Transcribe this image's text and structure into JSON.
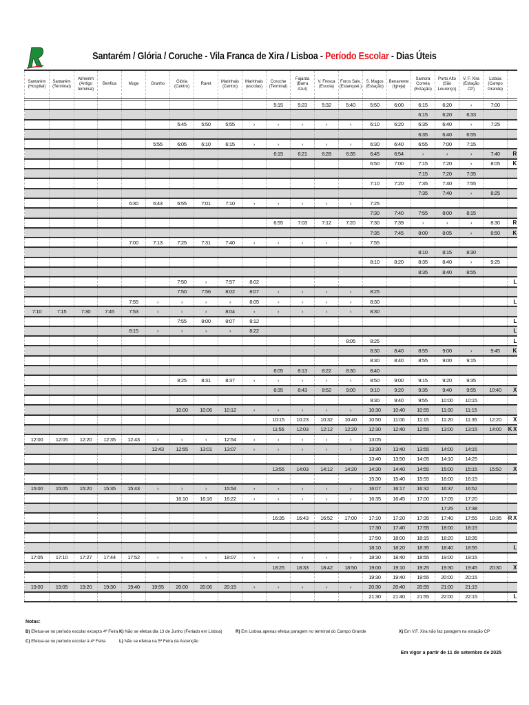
{
  "logo": {
    "letter": "R",
    "color": "#1f8a3a"
  },
  "title": {
    "part1": "Santarém / Glória / Coruche - Vila Franca de Xira / Lisboa - ",
    "highlight": "Período Escolar",
    "part2": " - Dias Úteis",
    "highlight_color": "#e3141b"
  },
  "columns": [
    "Santarém\n(Hospital)",
    "Santarém\n(Terminal)",
    "Almeirim\n(Antigo\nterminal)",
    "Benfica",
    "Muge",
    "Granho",
    "Glória\n(Centro)",
    "Raret",
    "Marinhais\n(Centro)",
    "Marinhais\n(escolas)",
    "Coruche\n(Terminal)",
    "Fajarda (Barra\nAzul)",
    "V. Fresca\n(Escola)",
    "Foros Salv.\n(Estanquei.)",
    "S. Magos\n(Estação)",
    "Benavente\n(Igreja)",
    "Samora\nCorreia\n(Estação)",
    "Porto Alto\n(São\nLourenço)",
    "V. F. Xira\n(Estação CP)",
    "Lisboa\n(Campo\nGrande)",
    ""
  ],
  "rows": [
    [
      "",
      "",
      "",
      "",
      "",
      "",
      "",
      "",
      "",
      "",
      "5:15",
      "5:23",
      "5:32",
      "5:40",
      "5:50",
      "6:00",
      "6:15",
      "6:20",
      "›",
      "7:00",
      ""
    ],
    [
      "",
      "",
      "",
      "",
      "",
      "",
      "",
      "",
      "",
      "",
      "",
      "",
      "",
      "",
      "",
      "",
      "6:15",
      "6:20",
      "6:33",
      "",
      ""
    ],
    [
      "",
      "",
      "",
      "",
      "",
      "",
      "5:45",
      "5:50",
      "5:55",
      "›",
      "›",
      "›",
      "›",
      "›",
      "6:10",
      "6:20",
      "6:35",
      "6:40",
      "›",
      "7:25",
      ""
    ],
    [
      "",
      "",
      "",
      "",
      "",
      "",
      "",
      "",
      "",
      "",
      "",
      "",
      "",
      "",
      "",
      "",
      "6:35",
      "6:40",
      "6:55",
      "",
      ""
    ],
    [
      "",
      "",
      "",
      "",
      "",
      "5:55",
      "6:05",
      "6:10",
      "6:15",
      "›",
      "›",
      "›",
      "›",
      "›",
      "6:30",
      "6:40",
      "6:55",
      "7:00",
      "7:15",
      "",
      ""
    ],
    [
      "",
      "",
      "",
      "",
      "",
      "",
      "",
      "",
      "",
      "",
      "6:15",
      "6:21",
      "6:28",
      "6:35",
      "6:45",
      "6:54",
      "›",
      "›",
      "›",
      "7:40",
      "R"
    ],
    [
      "",
      "",
      "",
      "",
      "",
      "",
      "",
      "",
      "",
      "",
      "",
      "",
      "",
      "",
      "6:50",
      "7:00",
      "7:15",
      "7:20",
      "›",
      "8:05",
      "K"
    ],
    [
      "",
      "",
      "",
      "",
      "",
      "",
      "",
      "",
      "",
      "",
      "",
      "",
      "",
      "",
      "",
      "",
      "7:15",
      "7:20",
      "7:35",
      "",
      ""
    ],
    [
      "",
      "",
      "",
      "",
      "",
      "",
      "",
      "",
      "",
      "",
      "",
      "",
      "",
      "",
      "7:10",
      "7:20",
      "7:35",
      "7:40",
      "7:55",
      "",
      ""
    ],
    [
      "",
      "",
      "",
      "",
      "",
      "",
      "",
      "",
      "",
      "",
      "",
      "",
      "",
      "",
      "",
      "",
      "7:35",
      "7:40",
      "›",
      "8:25",
      ""
    ],
    [
      "",
      "",
      "",
      "",
      "6:30",
      "6:43",
      "6:55",
      "7:01",
      "7:10",
      "›",
      "›",
      "›",
      "›",
      "›",
      "7:25",
      "",
      "",
      "",
      "",
      "",
      ""
    ],
    [
      "",
      "",
      "",
      "",
      "",
      "",
      "",
      "",
      "",
      "",
      "",
      "",
      "",
      "",
      "7:30",
      "7:40",
      "7:55",
      "8:00",
      "8:15",
      "",
      ""
    ],
    [
      "",
      "",
      "",
      "",
      "",
      "",
      "",
      "",
      "",
      "",
      "6:55",
      "7:03",
      "7:12",
      "7:20",
      "7:30",
      "7:39",
      "›",
      "›",
      "›",
      "8:30",
      "R"
    ],
    [
      "",
      "",
      "",
      "",
      "",
      "",
      "",
      "",
      "",
      "",
      "",
      "",
      "",
      "",
      "7:35",
      "7:45",
      "8:00",
      "8:05",
      "›",
      "8:50",
      "K"
    ],
    [
      "",
      "",
      "",
      "",
      "7:00",
      "7:13",
      "7:25",
      "7:31",
      "7:40",
      "›",
      "›",
      "›",
      "›",
      "›",
      "7:55",
      "",
      "",
      "",
      "",
      "",
      ""
    ],
    [
      "",
      "",
      "",
      "",
      "",
      "",
      "",
      "",
      "",
      "",
      "",
      "",
      "",
      "",
      "",
      "",
      "8:10",
      "8:15",
      "8:30",
      "",
      ""
    ],
    [
      "",
      "",
      "",
      "",
      "",
      "",
      "",
      "",
      "",
      "",
      "",
      "",
      "",
      "",
      "8:10",
      "8:20",
      "8:35",
      "8:40",
      "›",
      "9:25",
      ""
    ],
    [
      "",
      "",
      "",
      "",
      "",
      "",
      "",
      "",
      "",
      "",
      "",
      "",
      "",
      "",
      "",
      "",
      "8:35",
      "8:40",
      "8:55",
      "",
      ""
    ],
    [
      "",
      "",
      "",
      "",
      "",
      "",
      "7:50",
      "›",
      "7:57",
      "8:02",
      "",
      "",
      "",
      "",
      "",
      "",
      "",
      "",
      "",
      "",
      "L"
    ],
    [
      "",
      "",
      "",
      "",
      "",
      "",
      "7:50",
      "7:56",
      "8:02",
      "8:07",
      "›",
      "›",
      "›",
      "›",
      "8:25",
      "",
      "",
      "",
      "",
      "",
      ""
    ],
    [
      "",
      "",
      "",
      "",
      "7:55",
      "›",
      "›",
      "›",
      "›",
      "8:05",
      "›",
      "›",
      "›",
      "›",
      "8:30",
      "",
      "",
      "",
      "",
      "",
      "L"
    ],
    [
      "7:10",
      "7:15",
      "7:30",
      "7:45",
      "7:53",
      "›",
      "›",
      "›",
      "8:04",
      "›",
      "›",
      "›",
      "›",
      "›",
      "8:30",
      "",
      "",
      "",
      "",
      "",
      ""
    ],
    [
      "",
      "",
      "",
      "",
      "",
      "",
      "7:55",
      "8:00",
      "8:07",
      "8:12",
      "",
      "",
      "",
      "",
      "",
      "",
      "",
      "",
      "",
      "",
      "L"
    ],
    [
      "",
      "",
      "",
      "",
      "8:15",
      "›",
      "›",
      "›",
      "›",
      "8:22",
      "",
      "",
      "",
      "",
      "",
      "",
      "",
      "",
      "",
      "",
      "L"
    ],
    [
      "",
      "",
      "",
      "",
      "",
      "",
      "",
      "",
      "",
      "",
      "",
      "",
      "",
      "8:05",
      "8:25",
      "",
      "",
      "",
      "",
      "",
      "L"
    ],
    [
      "",
      "",
      "",
      "",
      "",
      "",
      "",
      "",
      "",
      "",
      "",
      "",
      "",
      "",
      "8:30",
      "8:40",
      "8:55",
      "9:00",
      "›",
      "9:45",
      "K"
    ],
    [
      "",
      "",
      "",
      "",
      "",
      "",
      "",
      "",
      "",
      "",
      "",
      "",
      "",
      "",
      "8:30",
      "8:40",
      "8:55",
      "9:00",
      "9:15",
      "",
      ""
    ],
    [
      "",
      "",
      "",
      "",
      "",
      "",
      "",
      "",
      "",
      "",
      "8:05",
      "8:13",
      "8:22",
      "8:30",
      "8:40",
      "",
      "",
      "",
      "",
      "",
      ""
    ],
    [
      "",
      "",
      "",
      "",
      "",
      "",
      "8:25",
      "8:31",
      "8:37",
      "›",
      "›",
      "›",
      "›",
      "›",
      "8:50",
      "9:00",
      "9:15",
      "9:20",
      "9:35",
      "",
      ""
    ],
    [
      "",
      "",
      "",
      "",
      "",
      "",
      "",
      "",
      "",
      "",
      "8:35",
      "8:43",
      "8:52",
      "9:00",
      "9:10",
      "9:20",
      "9:35",
      "9:40",
      "9:55",
      "10:40",
      "X"
    ],
    [
      "",
      "",
      "",
      "",
      "",
      "",
      "",
      "",
      "",
      "",
      "",
      "",
      "",
      "",
      "9:30",
      "9:40",
      "9:55",
      "10:00",
      "10:15",
      "",
      ""
    ],
    [
      "",
      "",
      "",
      "",
      "",
      "",
      "10:00",
      "10:06",
      "10:12",
      "›",
      "›",
      "›",
      "›",
      "›",
      "10:30",
      "10:40",
      "10:55",
      "11:00",
      "11:15",
      "",
      ""
    ],
    [
      "",
      "",
      "",
      "",
      "",
      "",
      "",
      "",
      "",
      "",
      "10:15",
      "10:23",
      "10:32",
      "10:40",
      "10:50",
      "11:00",
      "11:15",
      "11:20",
      "11:35",
      "12:20",
      "X"
    ],
    [
      "",
      "",
      "",
      "",
      "",
      "",
      "",
      "",
      "",
      "",
      "11:55",
      "12:03",
      "12:12",
      "12:20",
      "12:30",
      "12:40",
      "12:55",
      "13:00",
      "13:15",
      "14:00",
      "K X"
    ],
    [
      "12:00",
      "12:05",
      "12:20",
      "12:35",
      "12:43",
      "›",
      "›",
      "›",
      "12:54",
      "›",
      "›",
      "›",
      "›",
      "›",
      "13:05",
      "",
      "",
      "",
      "",
      "",
      ""
    ],
    [
      "",
      "",
      "",
      "",
      "",
      "12:43",
      "12:55",
      "13:01",
      "13:07",
      "›",
      "›",
      "›",
      "›",
      "›",
      "13:30",
      "13:40",
      "13:55",
      "14:00",
      "14:15",
      "",
      ""
    ],
    [
      "",
      "",
      "",
      "",
      "",
      "",
      "",
      "",
      "",
      "",
      "",
      "",
      "",
      "",
      "13:40",
      "13:50",
      "14:05",
      "14:10",
      "14:25",
      "",
      ""
    ],
    [
      "",
      "",
      "",
      "",
      "",
      "",
      "",
      "",
      "",
      "",
      "13:55",
      "14:03",
      "14:12",
      "14:20",
      "14:30",
      "14:40",
      "14:55",
      "15:00",
      "15:15",
      "15:50",
      "X"
    ],
    [
      "",
      "",
      "",
      "",
      "",
      "",
      "",
      "",
      "",
      "",
      "",
      "",
      "",
      "",
      "15:30",
      "15:40",
      "15:55",
      "16:00",
      "16:15",
      "",
      ""
    ],
    [
      "15:00",
      "15:05",
      "15:20",
      "15:35",
      "15:43",
      "›",
      "›",
      "›",
      "15:54",
      "›",
      "›",
      "›",
      "›",
      "›",
      "16:07",
      "16:17",
      "16:32",
      "16:37",
      "16:52",
      "",
      ""
    ],
    [
      "",
      "",
      "",
      "",
      "",
      "",
      "16:10",
      "16:16",
      "16:22",
      "›",
      "›",
      "›",
      "›",
      "›",
      "16:35",
      "16:45",
      "17:00",
      "17:05",
      "17:20",
      "",
      ""
    ],
    [
      "",
      "",
      "",
      "",
      "",
      "",
      "",
      "",
      "",
      "",
      "",
      "",
      "",
      "",
      "",
      "",
      "",
      "17:25",
      "17:38",
      "",
      ""
    ],
    [
      "",
      "",
      "",
      "",
      "",
      "",
      "",
      "",
      "",
      "",
      "16:35",
      "16:43",
      "16:52",
      "17:00",
      "17:10",
      "17:20",
      "17:35",
      "17:40",
      "17:55",
      "18:35",
      "R X"
    ],
    [
      "",
      "",
      "",
      "",
      "",
      "",
      "",
      "",
      "",
      "",
      "",
      "",
      "",
      "",
      "17:30",
      "17:40",
      "17:55",
      "18:00",
      "18:15",
      "",
      ""
    ],
    [
      "",
      "",
      "",
      "",
      "",
      "",
      "",
      "",
      "",
      "",
      "",
      "",
      "",
      "",
      "17:50",
      "18:00",
      "18:15",
      "18:20",
      "18:35",
      "",
      ""
    ],
    [
      "",
      "",
      "",
      "",
      "",
      "",
      "",
      "",
      "",
      "",
      "",
      "",
      "",
      "",
      "18:10",
      "18:20",
      "18:35",
      "18:40",
      "18:55",
      "",
      "L"
    ],
    [
      "17:05",
      "17:10",
      "17:27",
      "17:44",
      "17:52",
      "›",
      "›",
      "›",
      "18:07",
      "›",
      "›",
      "›",
      "›",
      "›",
      "18:30",
      "18:40",
      "18:55",
      "19:00",
      "19:15",
      "",
      ""
    ],
    [
      "",
      "",
      "",
      "",
      "",
      "",
      "",
      "",
      "",
      "",
      "18:25",
      "18:33",
      "18:42",
      "18:50",
      "19:00",
      "19:10",
      "19:25",
      "19:30",
      "19:45",
      "20:30",
      "X"
    ],
    [
      "",
      "",
      "",
      "",
      "",
      "",
      "",
      "",
      "",
      "",
      "",
      "",
      "",
      "",
      "19:30",
      "19:40",
      "19:55",
      "20:00",
      "20:15",
      "",
      ""
    ],
    [
      "19:00",
      "19:05",
      "19:20",
      "19:30",
      "19:40",
      "19:55",
      "20:00",
      "20:06",
      "20:15",
      "›",
      "›",
      "›",
      "›",
      "›",
      "20:30",
      "20:40",
      "20:55",
      "21:00",
      "21:15",
      "",
      ""
    ],
    [
      "",
      "",
      "",
      "",
      "",
      "",
      "",
      "",
      "",
      "",
      "",
      "",
      "",
      "",
      "21:30",
      "21:40",
      "21:55",
      "22:00",
      "22:15",
      "",
      "L"
    ]
  ],
  "notes": {
    "heading": "Notas:",
    "items": [
      {
        "key": "B)",
        "text": " Efetua-se no período escolar excepto 4ª Feira"
      },
      {
        "key": "C)",
        "text": " Efetua-se no período escolar à 4ª Feira"
      },
      {
        "key": "K)",
        "text": " Não se efetua dia 13 de Junho (Feriado em Lisboa)"
      },
      {
        "key": "L)",
        "text": " Não se efetua na 5ª Feira da Ascenção"
      },
      {
        "key": "R)",
        "text": " Em Lisboa apenas efetua paragem no terminal do Campo Grande"
      },
      {
        "key": "X)",
        "text": " Em V.F. Xira não faz paragem na estação CP"
      }
    ]
  },
  "footer": "Em vigor a partir de 11 de setembro de 2025",
  "colors": {
    "row_alt": "#d9d9d9",
    "rule": "#333333"
  }
}
